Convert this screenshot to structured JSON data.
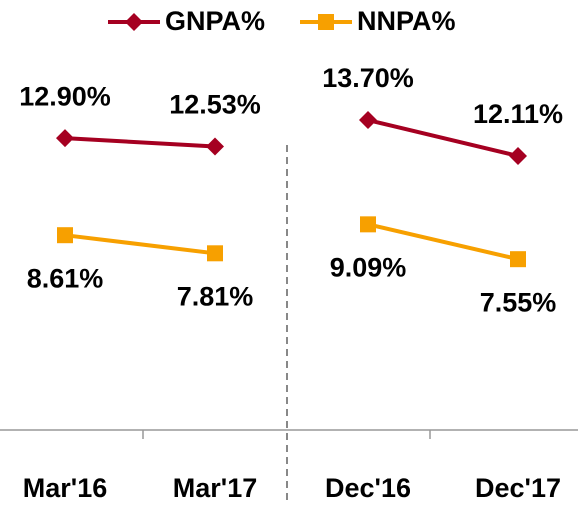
{
  "chart_data": [
    {
      "type": "line",
      "categories": [
        "Mar'16",
        "Mar'17"
      ],
      "series": [
        {
          "name": "GNPA%",
          "color": "#a50021",
          "values": [
            12.9,
            12.53
          ],
          "value_labels": [
            "12.90%",
            "12.53%"
          ]
        },
        {
          "name": "NNPA%",
          "color": "#f7a000",
          "values": [
            8.61,
            7.81
          ],
          "value_labels": [
            "8.61%",
            "7.81%"
          ]
        }
      ],
      "ylim": [
        0,
        16
      ]
    },
    {
      "type": "line",
      "categories": [
        "Dec'16",
        "Dec'17"
      ],
      "series": [
        {
          "color": "#a50021",
          "values": [
            13.7,
            12.11
          ],
          "value_labels": [
            "13.70%",
            "12.11%"
          ]
        },
        {
          "color": "#f7a000",
          "values": [
            9.09,
            7.55
          ],
          "value_labels": [
            "9.09%",
            "7.55%"
          ]
        }
      ],
      "ylim": [
        0,
        16
      ]
    }
  ]
}
